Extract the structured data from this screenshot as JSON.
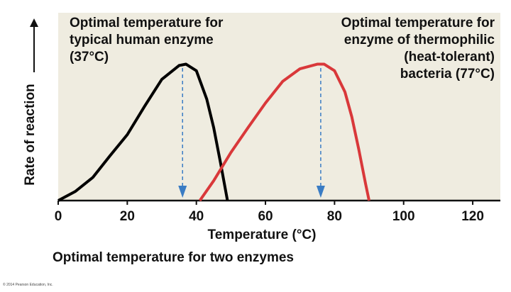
{
  "chart_data": {
    "type": "line",
    "xlabel": "Temperature (°C)",
    "ylabel": "Rate of reaction",
    "caption": "Optimal temperature for two enzymes",
    "credit": "© 2014 Pearson Education, Inc.",
    "xlim": [
      0,
      128
    ],
    "xticks": [
      0,
      20,
      40,
      60,
      80,
      100,
      120
    ],
    "ylim": [
      0,
      2.85
    ],
    "series": [
      {
        "color": "#000000",
        "x": [
          0,
          5,
          10,
          15,
          20,
          25,
          30,
          35,
          37,
          40,
          43,
          45,
          47,
          49
        ],
        "values": [
          0,
          0.14,
          0.35,
          0.68,
          1.0,
          1.43,
          1.84,
          2.05,
          2.07,
          1.97,
          1.54,
          1.11,
          0.57,
          0
        ]
      },
      {
        "color": "#d9383a",
        "x": [
          41,
          45,
          50,
          55,
          60,
          65,
          70,
          75,
          77,
          80,
          83,
          85,
          87,
          89,
          90
        ],
        "values": [
          0,
          0.3,
          0.73,
          1.11,
          1.48,
          1.81,
          2.0,
          2.07,
          2.07,
          1.97,
          1.65,
          1.27,
          0.78,
          0.25,
          0
        ]
      }
    ],
    "annotations": [
      {
        "lines": [
          "Optimal temperature for",
          "typical human enzyme",
          "(37°C)"
        ],
        "x": 36
      },
      {
        "lines": [
          "Optimal temperature for",
          "enzyme of thermophilic",
          "(heat-tolerant)",
          "bacteria (77°C)"
        ],
        "x": 76
      }
    ],
    "arrow_color": "#3a7cc4"
  }
}
